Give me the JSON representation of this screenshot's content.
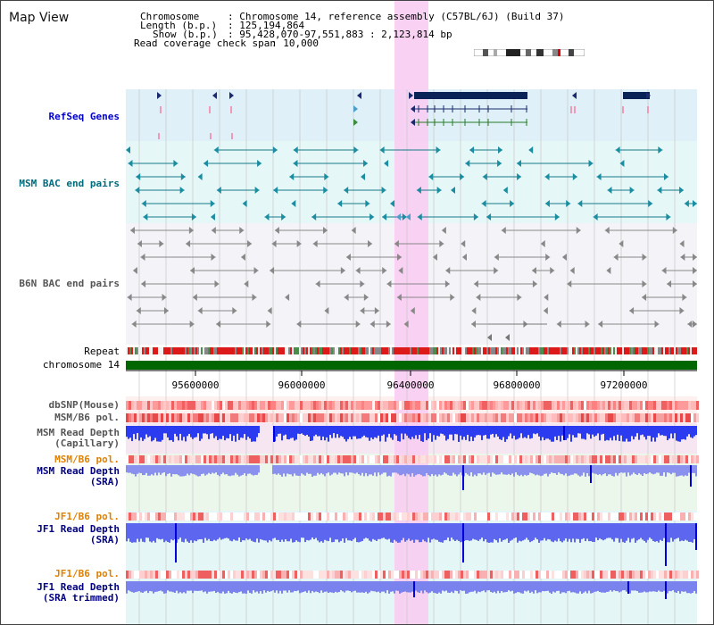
{
  "title": "Map View",
  "info": {
    "chromosome_key": "Chromosome",
    "chromosome_val": ": Chromosome 14, reference assembly (C57BL/6J) (Build 37)",
    "length_key": "Length (b.p.)",
    "length_val": ": 125,194,864",
    "show_key": "Show (b.p.)",
    "show_val": ": 95,428,070-97,551,883 : 2,123,814 bp",
    "read_key": "Read coverage check span",
    "read_val": ": 10,000"
  },
  "tracks": {
    "refseq": "RefSeq Genes",
    "msm_bac": "MSM BAC end pairs",
    "b6n_bac": "B6N BAC end pairs",
    "repeat": "Repeat",
    "chromosome": "chromosome 14",
    "dbsnp": "dbSNP(Mouse)",
    "msm_b6_pol": "MSM/B6 pol.",
    "msm_depth_cap_1": "MSM Read Depth",
    "msm_depth_cap_2": "(Capillary)",
    "msm_b6_pol_2": "MSM/B6 pol.",
    "msm_depth_sra_1": "MSM Read Depth",
    "msm_depth_sra_2": "(SRA)",
    "jf1_pol_1": "JF1/B6 pol.",
    "jf1_depth_sra_1": "JF1 Read Depth",
    "jf1_depth_sra_2": "(SRA)",
    "jf1_pol_2": "JF1/B6 pol.",
    "jf1_depth_trim_1": "JF1 Read Depth",
    "jf1_depth_trim_2": "(SRA trimmed)"
  },
  "axis_ticks": [
    "95600000",
    "96000000",
    "96400000",
    "96800000",
    "97200000"
  ],
  "colors": {
    "refseq_label": "#0000cc",
    "msm_label": "#006b7d",
    "b6n_label": "#555555",
    "orange_label": "#e08000",
    "blue_label": "#000080",
    "highlight": "#f5c8f0",
    "chromosome_bar": "#006600"
  }
}
